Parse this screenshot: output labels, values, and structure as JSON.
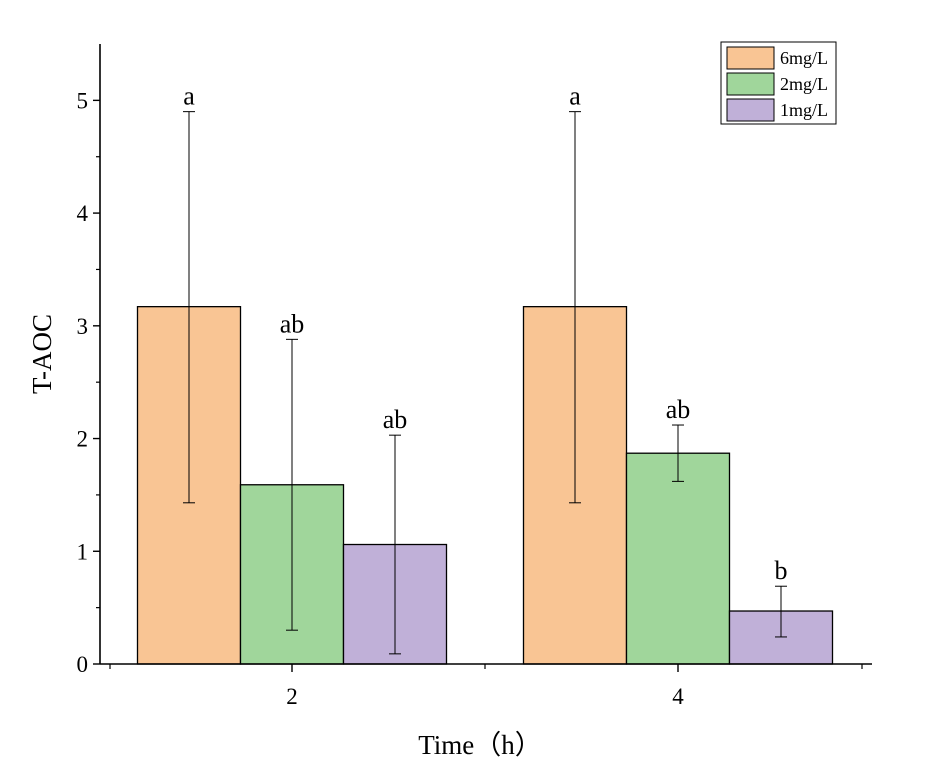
{
  "chart_data": {
    "type": "bar",
    "xlabel": "Time（h）",
    "ylabel": "T-AOC",
    "categories": [
      "2",
      "4"
    ],
    "ylim": [
      0,
      5.5
    ],
    "yticks": [
      0,
      1,
      2,
      3,
      4,
      5
    ],
    "grid": false,
    "legend_position": "top-right",
    "series": [
      {
        "name": "6mg/L",
        "color": "#F9C594",
        "values": [
          3.17,
          3.17
        ],
        "error_low": [
          1.43,
          1.43
        ],
        "error_high": [
          4.9,
          4.9
        ],
        "labels": [
          "a",
          "a"
        ]
      },
      {
        "name": "2mg/L",
        "color": "#A0D69B",
        "values": [
          1.59,
          1.87
        ],
        "error_low": [
          0.3,
          1.62
        ],
        "error_high": [
          2.88,
          2.12
        ],
        "labels": [
          "ab",
          "ab"
        ]
      },
      {
        "name": "1mg/L",
        "color": "#C0B0D8",
        "values": [
          1.06,
          0.47
        ],
        "error_low": [
          0.09,
          0.24
        ],
        "error_high": [
          2.03,
          0.69
        ],
        "labels": [
          "ab",
          "b"
        ]
      }
    ]
  }
}
